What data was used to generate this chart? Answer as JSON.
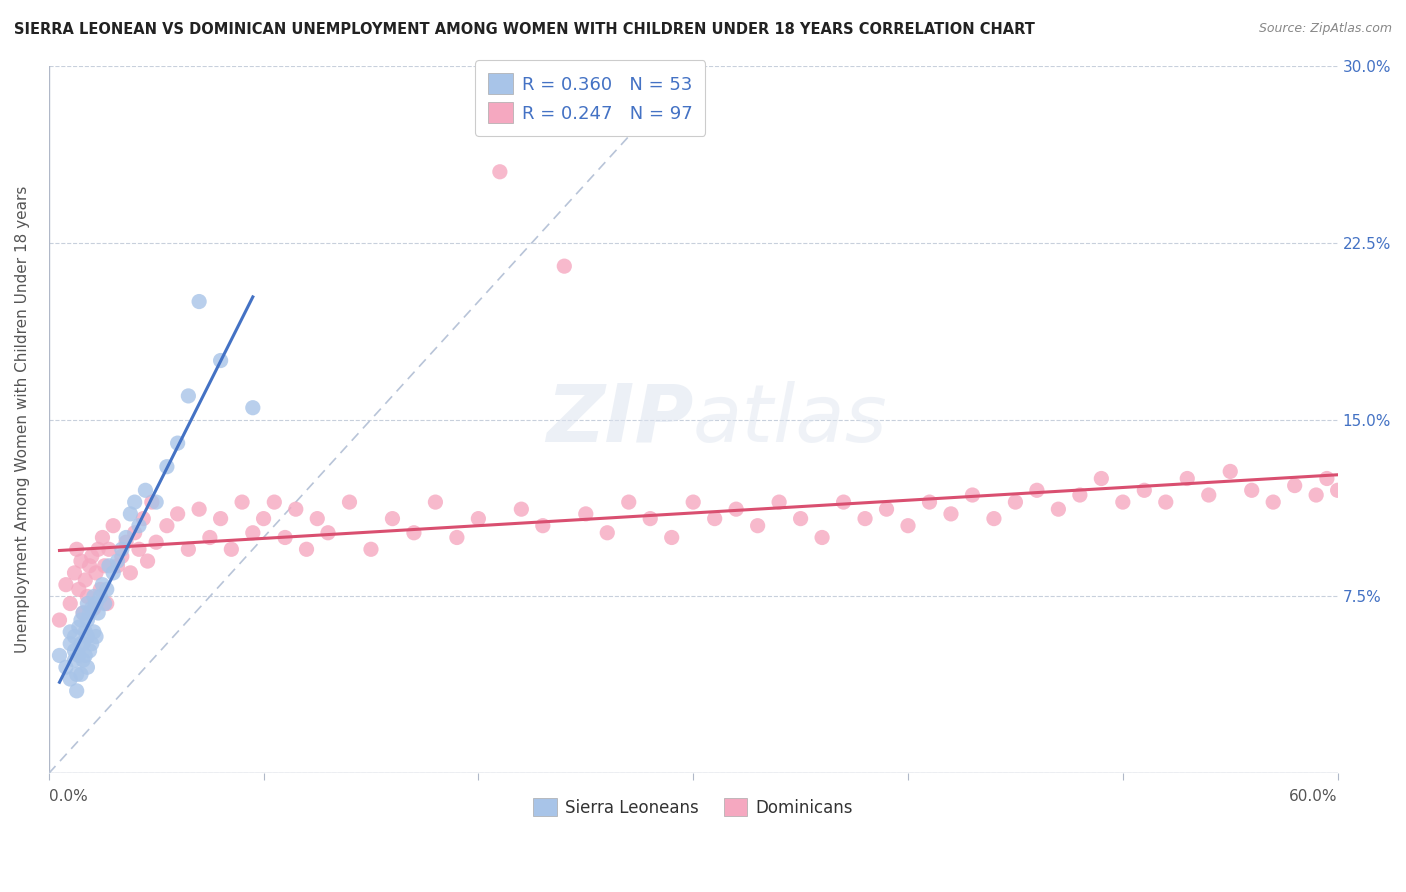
{
  "title": "SIERRA LEONEAN VS DOMINICAN UNEMPLOYMENT AMONG WOMEN WITH CHILDREN UNDER 18 YEARS CORRELATION CHART",
  "source": "Source: ZipAtlas.com",
  "ylabel": "Unemployment Among Women with Children Under 18 years",
  "xlim": [
    0,
    0.6
  ],
  "ylim": [
    0,
    0.3
  ],
  "yticks": [
    0.0,
    0.075,
    0.15,
    0.225,
    0.3
  ],
  "yticklabels": [
    "",
    "7.5%",
    "15.0%",
    "22.5%",
    "30.0%"
  ],
  "sierra_R": 0.36,
  "sierra_N": 53,
  "dominican_R": 0.247,
  "dominican_N": 97,
  "sierra_color": "#a8c4e8",
  "dominican_color": "#f5a8c0",
  "sierra_line_color": "#4472c4",
  "dominican_line_color": "#d94f70",
  "ref_line_color": "#b8c4d8",
  "legend_label_sierra": "Sierra Leoneans",
  "legend_label_dominican": "Dominicans",
  "watermark_zip": "ZIP",
  "watermark_atlas": "atlas",
  "background_color": "#ffffff",
  "sierra_x": [
    0.005,
    0.008,
    0.01,
    0.01,
    0.01,
    0.012,
    0.012,
    0.012,
    0.013,
    0.013,
    0.014,
    0.014,
    0.015,
    0.015,
    0.015,
    0.016,
    0.016,
    0.016,
    0.017,
    0.017,
    0.018,
    0.018,
    0.018,
    0.018,
    0.019,
    0.019,
    0.02,
    0.02,
    0.021,
    0.021,
    0.022,
    0.022,
    0.023,
    0.024,
    0.025,
    0.026,
    0.027,
    0.028,
    0.03,
    0.032,
    0.034,
    0.036,
    0.038,
    0.04,
    0.042,
    0.045,
    0.05,
    0.055,
    0.06,
    0.065,
    0.07,
    0.08,
    0.095
  ],
  "sierra_y": [
    0.05,
    0.045,
    0.04,
    0.055,
    0.06,
    0.048,
    0.052,
    0.058,
    0.035,
    0.042,
    0.05,
    0.062,
    0.042,
    0.055,
    0.065,
    0.048,
    0.055,
    0.068,
    0.05,
    0.06,
    0.045,
    0.058,
    0.065,
    0.072,
    0.052,
    0.068,
    0.055,
    0.07,
    0.06,
    0.075,
    0.058,
    0.072,
    0.068,
    0.075,
    0.08,
    0.072,
    0.078,
    0.088,
    0.085,
    0.09,
    0.095,
    0.1,
    0.11,
    0.115,
    0.105,
    0.12,
    0.115,
    0.13,
    0.14,
    0.16,
    0.2,
    0.175,
    0.155
  ],
  "dominican_x": [
    0.005,
    0.008,
    0.01,
    0.012,
    0.013,
    0.014,
    0.015,
    0.016,
    0.017,
    0.018,
    0.019,
    0.02,
    0.021,
    0.022,
    0.023,
    0.024,
    0.025,
    0.026,
    0.027,
    0.028,
    0.03,
    0.032,
    0.034,
    0.036,
    0.038,
    0.04,
    0.042,
    0.044,
    0.046,
    0.048,
    0.05,
    0.055,
    0.06,
    0.065,
    0.07,
    0.075,
    0.08,
    0.085,
    0.09,
    0.095,
    0.1,
    0.105,
    0.11,
    0.115,
    0.12,
    0.125,
    0.13,
    0.14,
    0.15,
    0.16,
    0.17,
    0.18,
    0.19,
    0.2,
    0.21,
    0.22,
    0.23,
    0.24,
    0.25,
    0.26,
    0.27,
    0.28,
    0.29,
    0.3,
    0.31,
    0.32,
    0.33,
    0.34,
    0.35,
    0.36,
    0.37,
    0.38,
    0.39,
    0.4,
    0.41,
    0.42,
    0.43,
    0.44,
    0.45,
    0.46,
    0.47,
    0.48,
    0.49,
    0.5,
    0.51,
    0.52,
    0.53,
    0.54,
    0.55,
    0.56,
    0.57,
    0.58,
    0.59,
    0.595,
    0.6,
    0.605,
    0.61
  ],
  "dominican_y": [
    0.065,
    0.08,
    0.072,
    0.085,
    0.095,
    0.078,
    0.09,
    0.068,
    0.082,
    0.075,
    0.088,
    0.092,
    0.07,
    0.085,
    0.095,
    0.078,
    0.1,
    0.088,
    0.072,
    0.095,
    0.105,
    0.088,
    0.092,
    0.098,
    0.085,
    0.102,
    0.095,
    0.108,
    0.09,
    0.115,
    0.098,
    0.105,
    0.11,
    0.095,
    0.112,
    0.1,
    0.108,
    0.095,
    0.115,
    0.102,
    0.108,
    0.115,
    0.1,
    0.112,
    0.095,
    0.108,
    0.102,
    0.115,
    0.095,
    0.108,
    0.102,
    0.115,
    0.1,
    0.108,
    0.255,
    0.112,
    0.105,
    0.215,
    0.11,
    0.102,
    0.115,
    0.108,
    0.1,
    0.115,
    0.108,
    0.112,
    0.105,
    0.115,
    0.108,
    0.1,
    0.115,
    0.108,
    0.112,
    0.105,
    0.115,
    0.11,
    0.118,
    0.108,
    0.115,
    0.12,
    0.112,
    0.118,
    0.125,
    0.115,
    0.12,
    0.115,
    0.125,
    0.118,
    0.128,
    0.12,
    0.115,
    0.122,
    0.118,
    0.125,
    0.12,
    0.115,
    0.122
  ]
}
